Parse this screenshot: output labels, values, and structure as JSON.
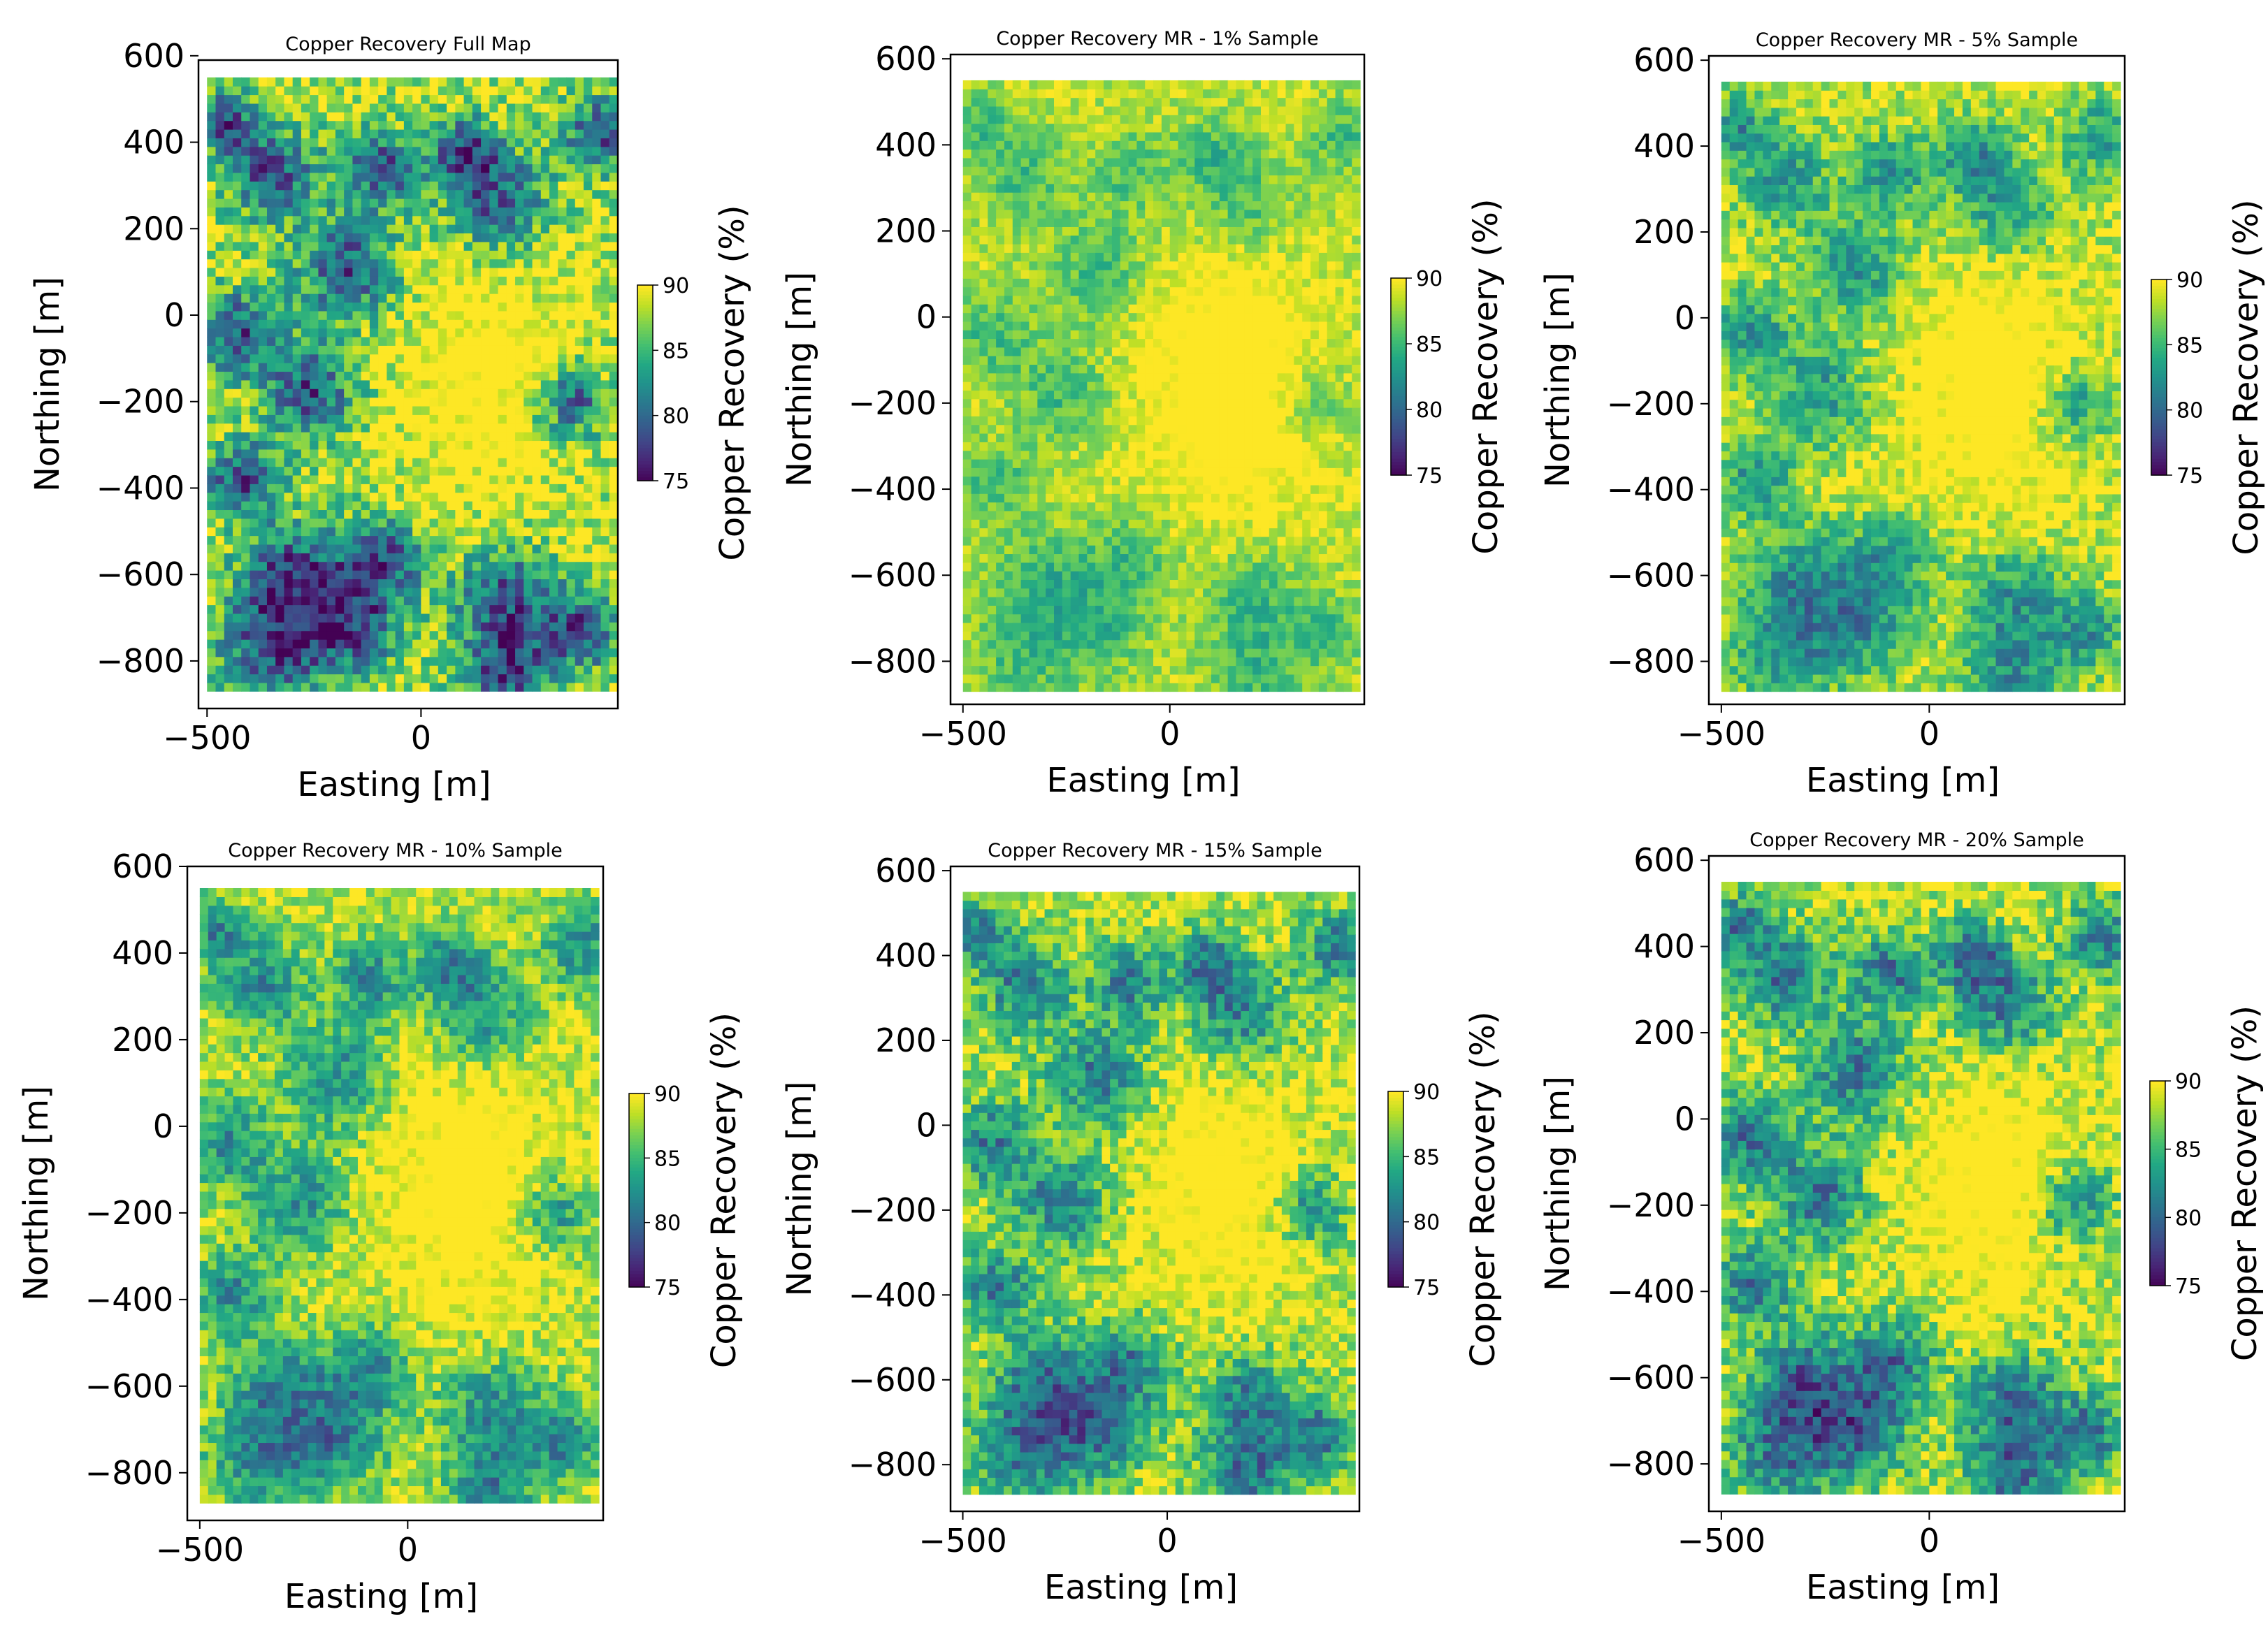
{
  "figure": {
    "colormap": "viridis",
    "colors": {
      "low": "#440154",
      "mid": "#21918c",
      "high": "#fde725",
      "grid_bg": "#ffffff"
    }
  },
  "chart_data": [
    {
      "type": "heatmap",
      "title": "Copper Recovery Full Map",
      "xlabel": "Easting [m]",
      "ylabel": "Northing [m]",
      "xlim": [
        -520,
        460
      ],
      "ylim": [
        -910,
        590
      ],
      "xticks": [
        -500,
        0
      ],
      "yticks": [
        600,
        400,
        200,
        0,
        -200,
        -400,
        -600,
        -800
      ],
      "grid_extent": {
        "x": [
          -500,
          450
        ],
        "y": [
          -870,
          550
        ]
      },
      "grid_cell_size_m": 20,
      "colorbar": {
        "label": "Copper Recovery (%)",
        "range": [
          75,
          90
        ],
        "ticks": [
          90,
          85,
          80,
          75
        ]
      },
      "field": {
        "seed": 11,
        "smoothing": 1.0,
        "high_zone_bias": 1.0
      }
    },
    {
      "type": "heatmap",
      "title": "Copper Recovery MR - 1% Sample",
      "xlabel": "Easting [m]",
      "ylabel": "Northing [m]",
      "xlim": [
        -530,
        470
      ],
      "ylim": [
        -900,
        610
      ],
      "xticks": [
        -500,
        0
      ],
      "yticks": [
        600,
        400,
        200,
        0,
        -200,
        -400,
        -600,
        -800
      ],
      "grid_extent": {
        "x": [
          -500,
          450
        ],
        "y": [
          -870,
          550
        ]
      },
      "grid_cell_size_m": 20,
      "colorbar": {
        "label": "Copper Recovery (%)",
        "range": [
          75,
          90
        ],
        "ticks": [
          90,
          85,
          80,
          75
        ]
      },
      "field": {
        "seed": 12,
        "smoothing": 0.35,
        "high_zone_bias": 1.0
      }
    },
    {
      "type": "heatmap",
      "title": "Copper Recovery MR - 5% Sample",
      "xlabel": "Easting [m]",
      "ylabel": "Northing [m]",
      "xlim": [
        -530,
        470
      ],
      "ylim": [
        -900,
        610
      ],
      "xticks": [
        -500,
        0
      ],
      "yticks": [
        600,
        400,
        200,
        0,
        -200,
        -400,
        -600,
        -800
      ],
      "grid_extent": {
        "x": [
          -500,
          450
        ],
        "y": [
          -870,
          550
        ]
      },
      "grid_cell_size_m": 20,
      "colorbar": {
        "label": "Copper Recovery (%)",
        "range": [
          75,
          90
        ],
        "ticks": [
          90,
          85,
          80,
          75
        ]
      },
      "field": {
        "seed": 13,
        "smoothing": 0.6,
        "high_zone_bias": 1.0
      }
    },
    {
      "type": "heatmap",
      "title": "Copper Recovery MR - 10% Sample",
      "xlabel": "Easting [m]",
      "ylabel": "Northing [m]",
      "xlim": [
        -530,
        470
      ],
      "ylim": [
        -910,
        600
      ],
      "xticks": [
        -500,
        0
      ],
      "yticks": [
        600,
        400,
        200,
        0,
        -200,
        -400,
        -600,
        -800
      ],
      "grid_extent": {
        "x": [
          -500,
          450
        ],
        "y": [
          -870,
          550
        ]
      },
      "grid_cell_size_m": 20,
      "colorbar": {
        "label": "Copper Recovery (%)",
        "range": [
          75,
          90
        ],
        "ticks": [
          90,
          85,
          80,
          75
        ]
      },
      "field": {
        "seed": 14,
        "smoothing": 0.65,
        "high_zone_bias": 1.0
      }
    },
    {
      "type": "heatmap",
      "title": "Copper Recovery MR - 15% Sample",
      "xlabel": "Easting [m]",
      "ylabel": "Northing [m]",
      "xlim": [
        -530,
        470
      ],
      "ylim": [
        -910,
        610
      ],
      "xticks": [
        -500,
        0
      ],
      "yticks": [
        600,
        400,
        200,
        0,
        -200,
        -400,
        -600,
        -800
      ],
      "grid_extent": {
        "x": [
          -500,
          450
        ],
        "y": [
          -870,
          550
        ]
      },
      "grid_cell_size_m": 20,
      "colorbar": {
        "label": "Copper Recovery (%)",
        "range": [
          75,
          90
        ],
        "ticks": [
          90,
          85,
          80,
          75
        ]
      },
      "field": {
        "seed": 15,
        "smoothing": 0.75,
        "high_zone_bias": 1.0
      }
    },
    {
      "type": "heatmap",
      "title": "Copper Recovery MR - 20% Sample",
      "xlabel": "Easting [m]",
      "ylabel": "Northing [m]",
      "xlim": [
        -530,
        470
      ],
      "ylim": [
        -910,
        610
      ],
      "xticks": [
        -500,
        0
      ],
      "yticks": [
        600,
        400,
        200,
        0,
        -200,
        -400,
        -600,
        -800
      ],
      "grid_extent": {
        "x": [
          -500,
          450
        ],
        "y": [
          -870,
          550
        ]
      },
      "grid_cell_size_m": 20,
      "colorbar": {
        "label": "Copper Recovery (%)",
        "range": [
          75,
          90
        ],
        "ticks": [
          90,
          85,
          80,
          75
        ]
      },
      "field": {
        "seed": 16,
        "smoothing": 0.8,
        "high_zone_bias": 1.0
      }
    }
  ]
}
